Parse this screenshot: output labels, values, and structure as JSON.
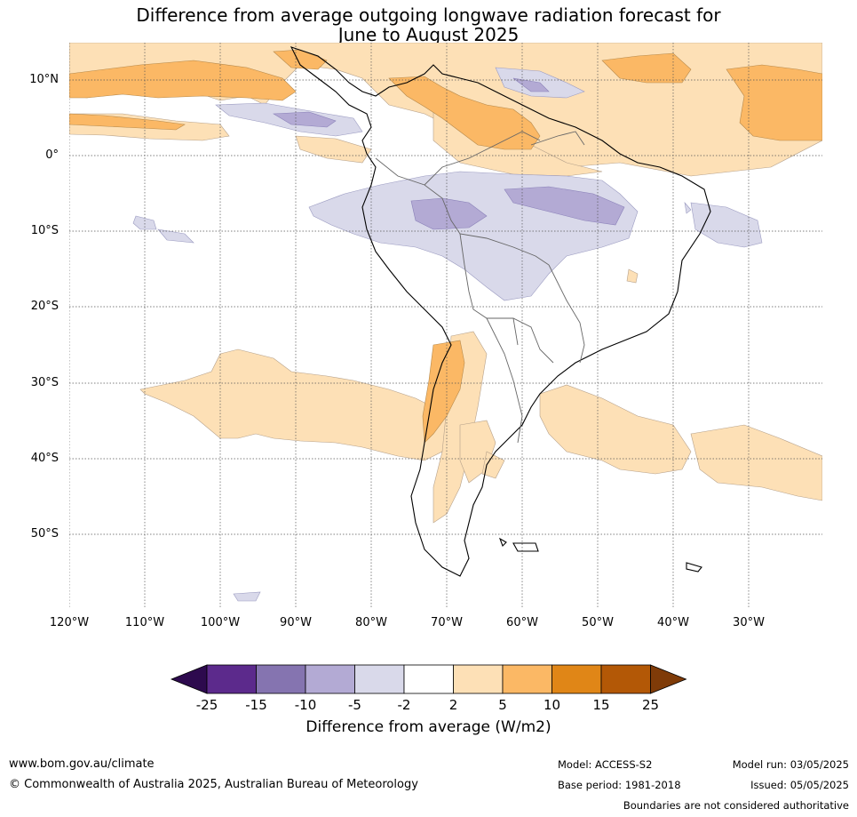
{
  "title": {
    "line1": "Difference from average outgoing longwave radiation forecast for",
    "line2": "June to August 2025"
  },
  "map": {
    "lat_labels": [
      "10°N",
      "0°",
      "10°S",
      "20°S",
      "30°S",
      "40°S",
      "50°S"
    ],
    "lon_labels": [
      "120°W",
      "110°W",
      "100°W",
      "90°W",
      "80°W",
      "70°W",
      "60°W",
      "50°W",
      "40°W",
      "30°W"
    ]
  },
  "colorbar": {
    "tick_labels": [
      "-25",
      "-15",
      "-10",
      "-5",
      "-2",
      "2",
      "5",
      "10",
      "15",
      "25"
    ],
    "colors": [
      "#2d0a4e",
      "#5c2a8c",
      "#8574b0",
      "#b3aad4",
      "#d9d9ea",
      "#ffffff",
      "#fde0b6",
      "#fbb865",
      "#e08617",
      "#b35806",
      "#7f3b08"
    ],
    "title": "Difference from average (W/m2)"
  },
  "footer": {
    "website": "www.bom.gov.au/climate",
    "copyright": "© Commonwealth of Australia 2025, Australian Bureau of Meteorology",
    "model": "Model: ACCESS-S2",
    "base_period": "Base period: 1981-2018",
    "model_run": "Model run: 03/05/2025",
    "issued": "Issued: 05/05/2025",
    "disclaimer": "Boundaries are not considered authoritative"
  }
}
